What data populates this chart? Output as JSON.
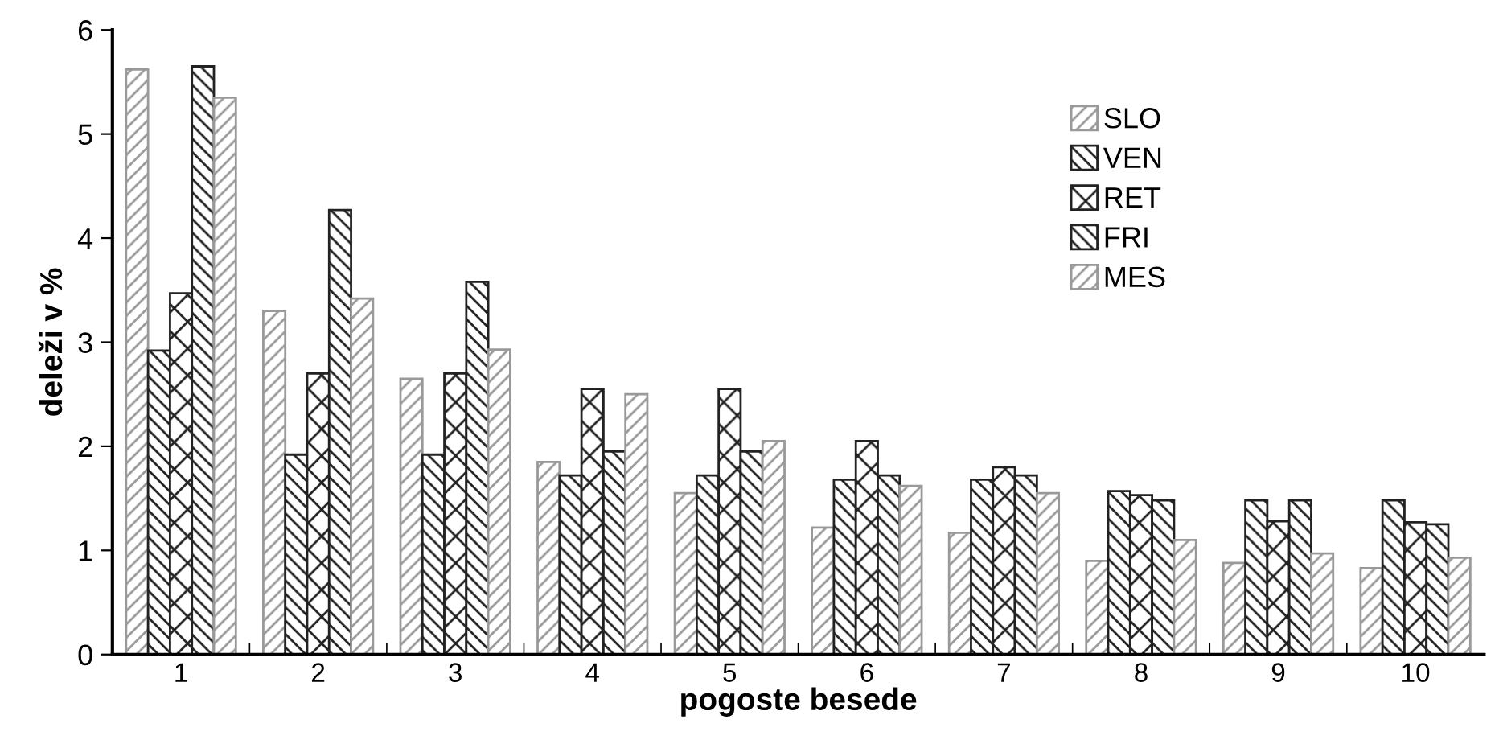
{
  "chart_data": {
    "type": "bar",
    "xlabel": "pogoste besede",
    "ylabel": "deleži v %",
    "categories": [
      "1",
      "2",
      "3",
      "4",
      "5",
      "6",
      "7",
      "8",
      "9",
      "10"
    ],
    "series": [
      {
        "name": "SLO",
        "color": "#999999",
        "values": [
          5.62,
          3.3,
          2.65,
          1.85,
          1.55,
          1.22,
          1.17,
          0.9,
          0.88,
          0.83
        ]
      },
      {
        "name": "VEN",
        "color": "#222222",
        "values": [
          2.92,
          1.92,
          1.92,
          1.72,
          1.72,
          1.68,
          1.68,
          1.57,
          1.48,
          1.48
        ]
      },
      {
        "name": "RET",
        "color": "#222222",
        "values": [
          3.47,
          2.7,
          2.7,
          2.55,
          2.55,
          2.05,
          1.8,
          1.53,
          1.28,
          1.27
        ]
      },
      {
        "name": "FRI",
        "color": "#222222",
        "values": [
          5.65,
          4.27,
          3.58,
          1.95,
          1.95,
          1.72,
          1.72,
          1.48,
          1.48,
          1.25
        ]
      },
      {
        "name": "MES",
        "color": "#999999",
        "values": [
          5.35,
          3.42,
          2.93,
          2.5,
          2.05,
          1.62,
          1.55,
          1.1,
          0.97,
          0.93
        ]
      }
    ],
    "ylim": [
      0,
      6
    ],
    "yticks": [
      0,
      1,
      2,
      3,
      4,
      5,
      6
    ],
    "grid": false,
    "legend": "top right"
  }
}
